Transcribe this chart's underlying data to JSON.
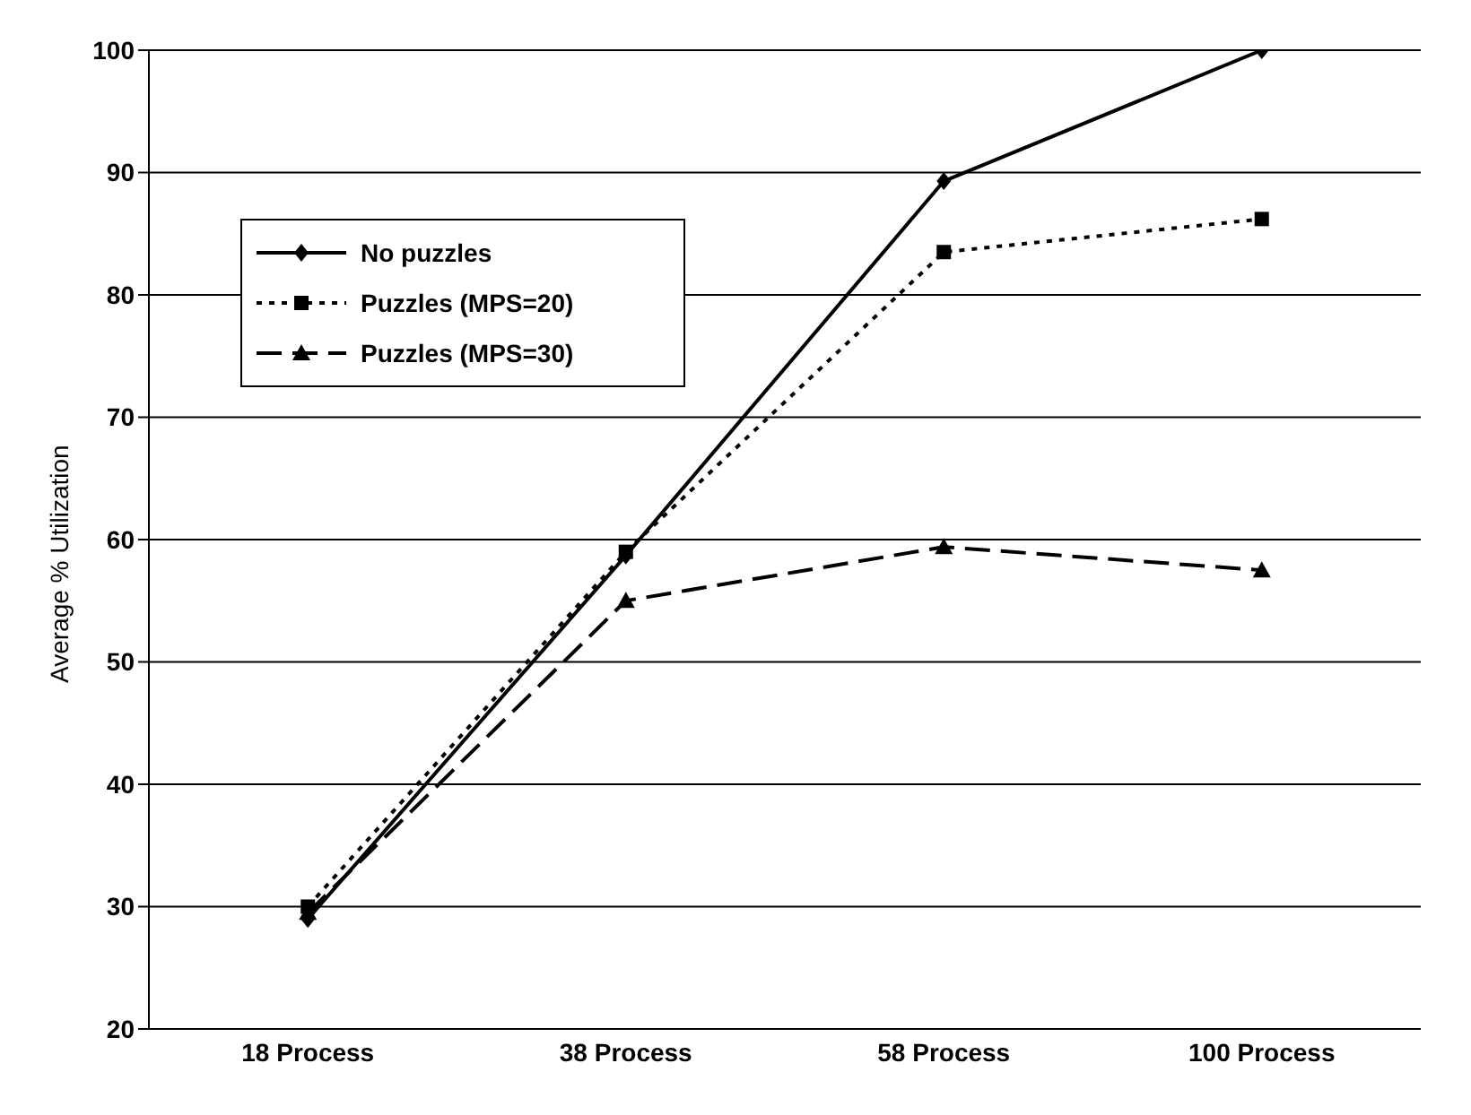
{
  "chart_data": {
    "type": "line",
    "ylabel": "Average % Utilization",
    "categories": [
      "18 Process",
      "38 Process",
      "58 Process",
      "100 Process"
    ],
    "series": [
      {
        "name": "No puzzles",
        "color": "#000000",
        "marker": "diamond",
        "line_style": "solid",
        "values": [
          29,
          58.7,
          89.3,
          100
        ]
      },
      {
        "name": "Puzzles (MPS=20)",
        "color": "#000000",
        "marker": "square",
        "line_style": "dotted",
        "values": [
          30,
          59,
          83.5,
          86.2
        ]
      },
      {
        "name": "Puzzles (MPS=30)",
        "color": "#000000",
        "marker": "triangle",
        "line_style": "dashed",
        "values": [
          29.5,
          55,
          59.4,
          57.5
        ]
      }
    ],
    "ylim": [
      20,
      100
    ],
    "yticks": [
      20,
      30,
      40,
      50,
      60,
      70,
      80,
      90,
      100
    ],
    "grid": "y",
    "legend": "top left"
  }
}
